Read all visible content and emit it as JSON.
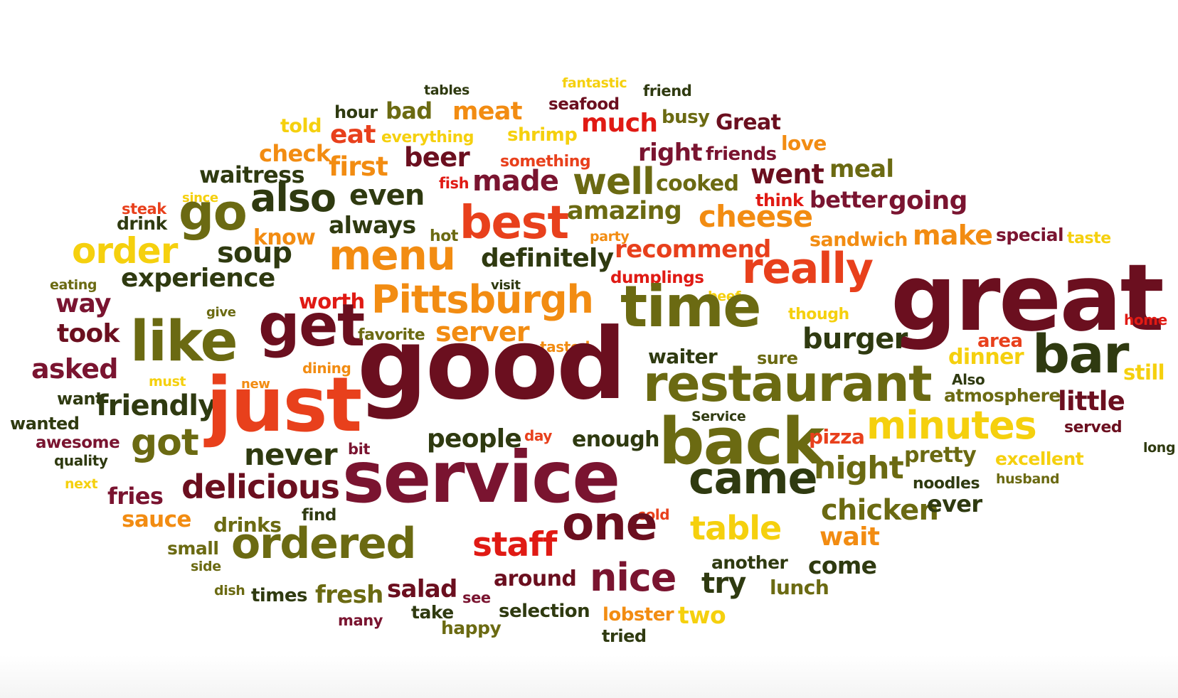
{
  "palette": {
    "maroon": "#6b0f1f",
    "wine": "#7a1430",
    "olive": "#6b6a12",
    "darkgreen": "#2f3a10",
    "orange": "#f28c12",
    "redorange": "#e8401c",
    "red": "#e01a14",
    "yellow": "#f5d00e",
    "gold": "#f0a41e"
  },
  "words": [
    {
      "text": "tables",
      "color": "#2f3a10"
    },
    {
      "text": "fantastic",
      "color": "#f5d00e"
    },
    {
      "text": "friend",
      "color": "#2f3a10"
    },
    {
      "text": "seafood",
      "color": "#6b0f1f"
    },
    {
      "text": "hour",
      "color": "#2f3a10"
    },
    {
      "text": "bad",
      "color": "#6b6a12"
    },
    {
      "text": "meat",
      "color": "#f28c12"
    },
    {
      "text": "busy",
      "color": "#6b6a12"
    },
    {
      "text": "Great",
      "color": "#6b0f1f"
    },
    {
      "text": "told",
      "color": "#f5d00e"
    },
    {
      "text": "eat",
      "color": "#e8401c"
    },
    {
      "text": "everything",
      "color": "#f5d00e"
    },
    {
      "text": "shrimp",
      "color": "#f5d00e"
    },
    {
      "text": "much",
      "color": "#e01a14"
    },
    {
      "text": "love",
      "color": "#f28c12"
    },
    {
      "text": "check",
      "color": "#f28c12"
    },
    {
      "text": "beer",
      "color": "#6b0f1f"
    },
    {
      "text": "something",
      "color": "#e8401c"
    },
    {
      "text": "right",
      "color": "#7a1430"
    },
    {
      "text": "friends",
      "color": "#7a1430"
    },
    {
      "text": "waitress",
      "color": "#2f3a10"
    },
    {
      "text": "first",
      "color": "#f28c12"
    },
    {
      "text": "went",
      "color": "#6b0f1f"
    },
    {
      "text": "meal",
      "color": "#6b6a12"
    },
    {
      "text": "fish",
      "color": "#e01a14"
    },
    {
      "text": "made",
      "color": "#7a1430"
    },
    {
      "text": "well",
      "color": "#6b6a12"
    },
    {
      "text": "cooked",
      "color": "#6b6a12"
    },
    {
      "text": "steak",
      "color": "#e8401c"
    },
    {
      "text": "since",
      "color": "#f5d00e"
    },
    {
      "text": "go",
      "color": "#6b6a12"
    },
    {
      "text": "also",
      "color": "#2f3a10"
    },
    {
      "text": "even",
      "color": "#2f3a10"
    },
    {
      "text": "think",
      "color": "#e01a14"
    },
    {
      "text": "better",
      "color": "#7a1430"
    },
    {
      "text": "going",
      "color": "#7a1430"
    },
    {
      "text": "drink",
      "color": "#2f3a10"
    },
    {
      "text": "always",
      "color": "#2f3a10"
    },
    {
      "text": "hot",
      "color": "#6b6a12"
    },
    {
      "text": "best",
      "color": "#e8401c"
    },
    {
      "text": "amazing",
      "color": "#6b6a12"
    },
    {
      "text": "cheese",
      "color": "#f28c12"
    },
    {
      "text": "know",
      "color": "#f28c12"
    },
    {
      "text": "party",
      "color": "#f28c12"
    },
    {
      "text": "sandwich",
      "color": "#f28c12"
    },
    {
      "text": "make",
      "color": "#f28c12"
    },
    {
      "text": "special",
      "color": "#7a1430"
    },
    {
      "text": "taste",
      "color": "#f5d00e"
    },
    {
      "text": "order",
      "color": "#f5d00e"
    },
    {
      "text": "soup",
      "color": "#2f3a10"
    },
    {
      "text": "menu",
      "color": "#f28c12"
    },
    {
      "text": "recommend",
      "color": "#e8401c"
    },
    {
      "text": "definitely",
      "color": "#2f3a10"
    },
    {
      "text": "eating",
      "color": "#6b6a12"
    },
    {
      "text": "experience",
      "color": "#2f3a10"
    },
    {
      "text": "dumplings",
      "color": "#e01a14"
    },
    {
      "text": "really",
      "color": "#e8401c"
    },
    {
      "text": "visit",
      "color": "#2f3a10"
    },
    {
      "text": "great",
      "color": "#6b0f1f"
    },
    {
      "text": "way",
      "color": "#7a1430"
    },
    {
      "text": "give",
      "color": "#6b6a12"
    },
    {
      "text": "worth",
      "color": "#e01a14"
    },
    {
      "text": "Pittsburgh",
      "color": "#f28c12"
    },
    {
      "text": "beef",
      "color": "#f5d00e"
    },
    {
      "text": "time",
      "color": "#6b6a12"
    },
    {
      "text": "though",
      "color": "#f5d00e"
    },
    {
      "text": "home",
      "color": "#e01a14"
    },
    {
      "text": "took",
      "color": "#6b0f1f"
    },
    {
      "text": "like",
      "color": "#6b6a12"
    },
    {
      "text": "get",
      "color": "#6b0f1f"
    },
    {
      "text": "favorite",
      "color": "#6b6a12"
    },
    {
      "text": "server",
      "color": "#f28c12"
    },
    {
      "text": "tasted",
      "color": "#f28c12"
    },
    {
      "text": "burger",
      "color": "#2f3a10"
    },
    {
      "text": "area",
      "color": "#e8401c"
    },
    {
      "text": "asked",
      "color": "#7a1430"
    },
    {
      "text": "dining",
      "color": "#f28c12"
    },
    {
      "text": "waiter",
      "color": "#2f3a10"
    },
    {
      "text": "sure",
      "color": "#6b6a12"
    },
    {
      "text": "dinner",
      "color": "#f5d00e"
    },
    {
      "text": "bar",
      "color": "#2f3a10"
    },
    {
      "text": "still",
      "color": "#f5d00e"
    },
    {
      "text": "must",
      "color": "#f5d00e"
    },
    {
      "text": "new",
      "color": "#f28c12"
    },
    {
      "text": "good",
      "color": "#6b0f1f"
    },
    {
      "text": "restaurant",
      "color": "#6b6a12"
    },
    {
      "text": "Also",
      "color": "#2f3a10"
    },
    {
      "text": "want",
      "color": "#2f3a10"
    },
    {
      "text": "friendly",
      "color": "#2f3a10"
    },
    {
      "text": "just",
      "color": "#e8401c"
    },
    {
      "text": "atmosphere",
      "color": "#6b6a12"
    },
    {
      "text": "little",
      "color": "#6b0f1f"
    },
    {
      "text": "wanted",
      "color": "#2f3a10"
    },
    {
      "text": "Service",
      "color": "#2f3a10"
    },
    {
      "text": "awesome",
      "color": "#7a1430"
    },
    {
      "text": "got",
      "color": "#6b6a12"
    },
    {
      "text": "people",
      "color": "#2f3a10"
    },
    {
      "text": "day",
      "color": "#e8401c"
    },
    {
      "text": "enough",
      "color": "#2f3a10"
    },
    {
      "text": "back",
      "color": "#6b6a12"
    },
    {
      "text": "minutes",
      "color": "#f5d00e"
    },
    {
      "text": "pizza",
      "color": "#e8401c"
    },
    {
      "text": "served",
      "color": "#6b0f1f"
    },
    {
      "text": "quality",
      "color": "#2f3a10"
    },
    {
      "text": "never",
      "color": "#2f3a10"
    },
    {
      "text": "bit",
      "color": "#7a1430"
    },
    {
      "text": "long",
      "color": "#2f3a10"
    },
    {
      "text": "pretty",
      "color": "#6b6a12"
    },
    {
      "text": "excellent",
      "color": "#f5d00e"
    },
    {
      "text": "next",
      "color": "#f5d00e"
    },
    {
      "text": "service",
      "color": "#7a1430"
    },
    {
      "text": "night",
      "color": "#6b6a12"
    },
    {
      "text": "husband",
      "color": "#6b6a12"
    },
    {
      "text": "came",
      "color": "#2f3a10"
    },
    {
      "text": "delicious",
      "color": "#6b0f1f"
    },
    {
      "text": "fries",
      "color": "#7a1430"
    },
    {
      "text": "noodles",
      "color": "#2f3a10"
    },
    {
      "text": "chicken",
      "color": "#6b6a12"
    },
    {
      "text": "ever",
      "color": "#2f3a10"
    },
    {
      "text": "sauce",
      "color": "#f28c12"
    },
    {
      "text": "drinks",
      "color": "#6b6a12"
    },
    {
      "text": "find",
      "color": "#2f3a10"
    },
    {
      "text": "cold",
      "color": "#e8401c"
    },
    {
      "text": "table",
      "color": "#f5d00e"
    },
    {
      "text": "ordered",
      "color": "#6b6a12"
    },
    {
      "text": "one",
      "color": "#6b0f1f"
    },
    {
      "text": "small",
      "color": "#6b6a12"
    },
    {
      "text": "wait",
      "color": "#f28c12"
    },
    {
      "text": "staff",
      "color": "#e01a14"
    },
    {
      "text": "another",
      "color": "#2f3a10"
    },
    {
      "text": "side",
      "color": "#6b6a12"
    },
    {
      "text": "come",
      "color": "#2f3a10"
    },
    {
      "text": "around",
      "color": "#6b0f1f"
    },
    {
      "text": "try",
      "color": "#2f3a10"
    },
    {
      "text": "nice",
      "color": "#7a1430"
    },
    {
      "text": "salad",
      "color": "#6b0f1f"
    },
    {
      "text": "lunch",
      "color": "#6b6a12"
    },
    {
      "text": "dish",
      "color": "#6b6a12"
    },
    {
      "text": "times",
      "color": "#2f3a10"
    },
    {
      "text": "fresh",
      "color": "#6b6a12"
    },
    {
      "text": "see",
      "color": "#7a1430"
    },
    {
      "text": "selection",
      "color": "#2f3a10"
    },
    {
      "text": "lobster",
      "color": "#f28c12"
    },
    {
      "text": "two",
      "color": "#f5d00e"
    },
    {
      "text": "many",
      "color": "#7a1430"
    },
    {
      "text": "take",
      "color": "#2f3a10"
    },
    {
      "text": "happy",
      "color": "#6b6a12"
    },
    {
      "text": "tried",
      "color": "#2f3a10"
    }
  ]
}
